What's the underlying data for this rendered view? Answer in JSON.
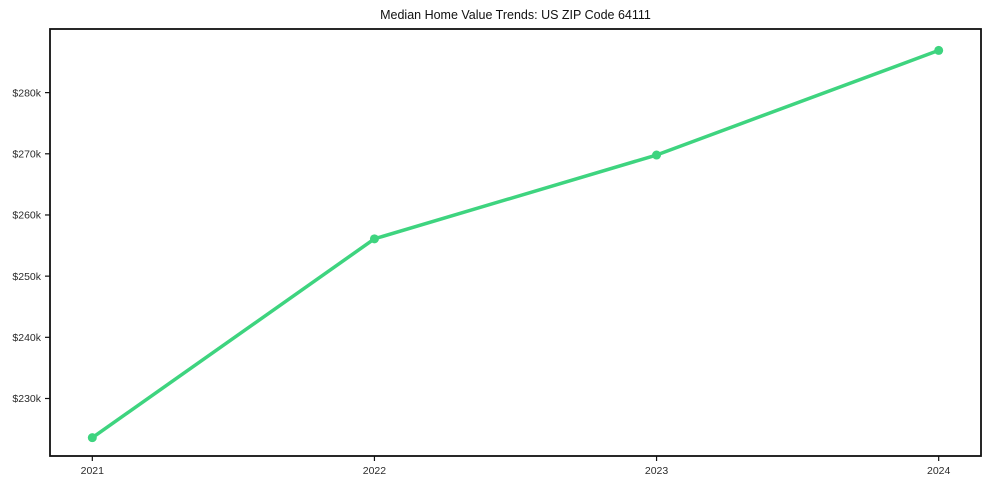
{
  "chart_data": {
    "type": "line",
    "title": "Median Home Value Trends: US ZIP Code 64111",
    "x": [
      2021,
      2022,
      2023,
      2024
    ],
    "x_tick_labels": [
      "2021",
      "2022",
      "2023",
      "2024"
    ],
    "series": [
      {
        "name": "Median home value",
        "values": [
          223600,
          256100,
          269800,
          286900
        ]
      }
    ],
    "y_ticks": [
      {
        "value": 230000,
        "label": "$230k"
      },
      {
        "value": 240000,
        "label": "$240k"
      },
      {
        "value": 250000,
        "label": "$250k"
      },
      {
        "value": 260000,
        "label": "$260k"
      },
      {
        "value": 270000,
        "label": "$270k"
      },
      {
        "value": 280000,
        "label": "$280k"
      }
    ],
    "xlim": [
      2020.85,
      2024.15
    ],
    "ylim": [
      220600,
      290400
    ],
    "grid": false,
    "legend": "none",
    "line_color": "#3ed47f",
    "marker": "circle",
    "axis_color": "#111111",
    "tick_label_color": "#2b2b2b",
    "background": "#ffffff"
  }
}
